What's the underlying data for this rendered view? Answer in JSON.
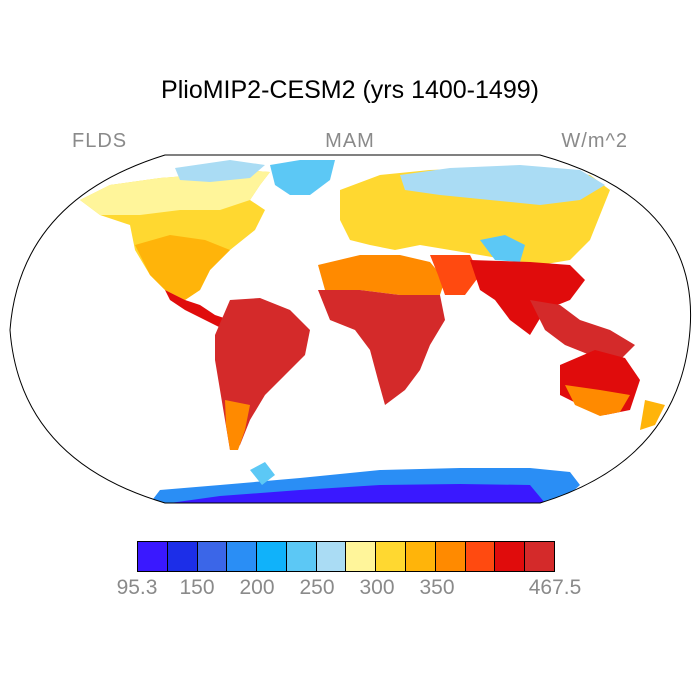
{
  "title": "PlioMIP2-CESM2 (yrs 1400-1499)",
  "left_label": "FLDS",
  "center_label": "MAM",
  "right_label": "W/m^2",
  "colors": {
    "ocean": "#ffffff",
    "outline": "#000000",
    "label_gray": "#8a8a8a"
  },
  "colorbar": {
    "colors": [
      "#3a18ff",
      "#1c2ee8",
      "#3b66e8",
      "#2a8ef5",
      "#10b2fa",
      "#5cc8f5",
      "#aadcf4",
      "#fff59a",
      "#ffd830",
      "#ffb40a",
      "#ff8a00",
      "#ff4a10",
      "#e00c0c",
      "#d42a2a"
    ],
    "labels": [
      "95.3",
      "150",
      "200",
      "250",
      "300",
      "350",
      "467.5"
    ]
  }
}
